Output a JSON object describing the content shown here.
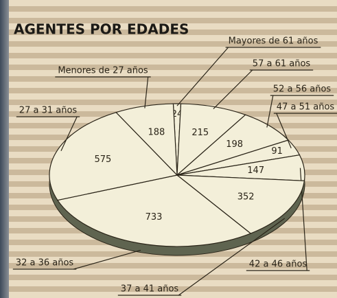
{
  "chart_data": {
    "type": "pie",
    "title": "AGENTES POR EDADES",
    "categories": [
      "Mayores de 61 años",
      "57 a 61 años",
      "52 a 56 años",
      "47 a 51 años",
      "42 a 46 años",
      "37 a 41 años",
      "32 a 36 años",
      "27 a 31 años",
      "Menores de 27 años"
    ],
    "values": [
      24,
      215,
      198,
      91,
      147,
      352,
      733,
      575,
      188
    ],
    "color": "#f3efd9"
  }
}
